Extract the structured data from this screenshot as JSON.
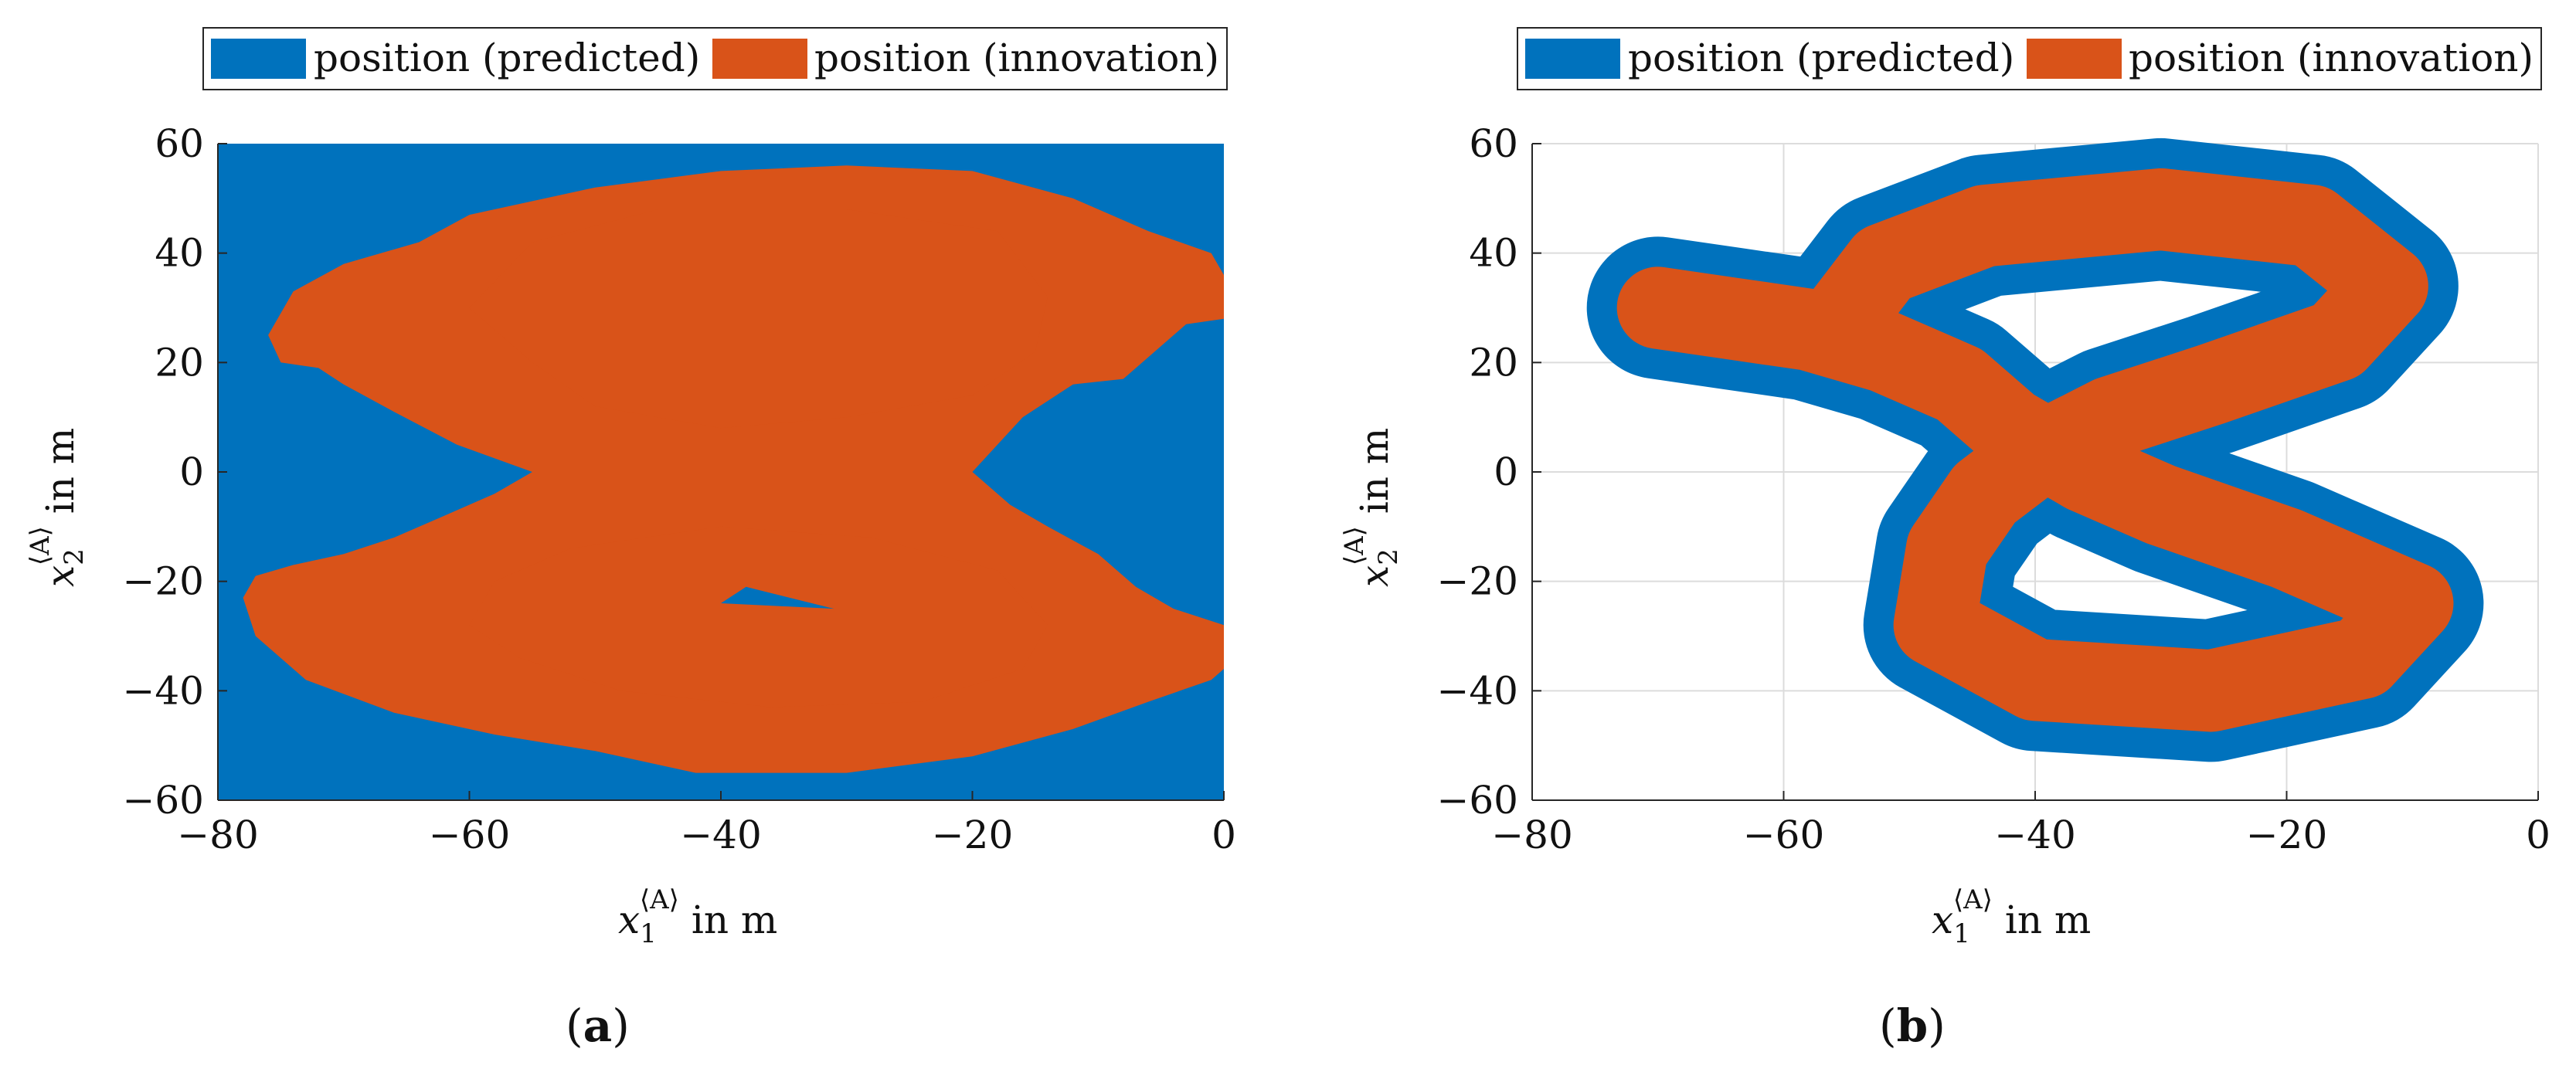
{
  "colors": {
    "predicted": "#0072BD",
    "innovation": "#D95319",
    "grid": "#dcdcdc",
    "axis": "#262626"
  },
  "chart_data": [
    {
      "type": "area",
      "panel_label": "a",
      "legend": {
        "entries": [
          "position (predicted)",
          "position (innovation)"
        ],
        "placement": "top"
      },
      "xlabel": {
        "symbol": "x",
        "sub": "1",
        "sup": "⟨A⟩",
        "unit": " in m"
      },
      "ylabel": {
        "symbol": "x",
        "sub": "2",
        "sup": "⟨A⟩",
        "unit": " in m"
      },
      "xlim": [
        -80,
        0
      ],
      "ylim": [
        -60,
        60
      ],
      "xticks": [
        -80,
        -60,
        -40,
        -20,
        0
      ],
      "yticks": [
        -60,
        -40,
        -20,
        0,
        20,
        40,
        60
      ],
      "xtick_labels": [
        "−80",
        "−60",
        "−40",
        "−20",
        "0"
      ],
      "ytick_labels": [
        "−60",
        "−40",
        "−20",
        "0",
        "20",
        "40",
        "60"
      ],
      "grid": false,
      "series": [
        {
          "name": "position (predicted)",
          "color": "#0072BD",
          "polygons": [
            [
              [
                -80,
                -60
              ],
              [
                0,
                -60
              ],
              [
                0,
                60
              ],
              [
                -80,
                60
              ]
            ]
          ]
        },
        {
          "name": "position (innovation)",
          "color": "#D95319",
          "polygons": [
            [
              [
                -76,
                25
              ],
              [
                -74,
                33
              ],
              [
                -70,
                38
              ],
              [
                -64,
                42
              ],
              [
                -60,
                47
              ],
              [
                -50,
                52
              ],
              [
                -40,
                55
              ],
              [
                -30,
                56
              ],
              [
                -20,
                55
              ],
              [
                -12,
                50
              ],
              [
                -6,
                44
              ],
              [
                -1,
                40
              ],
              [
                0,
                36
              ],
              [
                0,
                28
              ],
              [
                -3,
                27
              ],
              [
                -8,
                17
              ],
              [
                -12,
                16
              ],
              [
                -16,
                10
              ],
              [
                -20,
                0
              ],
              [
                -40,
                0
              ],
              [
                -55,
                0
              ],
              [
                -61,
                5
              ],
              [
                -66,
                11
              ],
              [
                -70,
                16
              ],
              [
                -72,
                19
              ],
              [
                -75,
                20
              ]
            ],
            [
              [
                -78,
                -23
              ],
              [
                -77,
                -30
              ],
              [
                -73,
                -38
              ],
              [
                -66,
                -44
              ],
              [
                -58,
                -48
              ],
              [
                -50,
                -51
              ],
              [
                -42,
                -55
              ],
              [
                -30,
                -55
              ],
              [
                -20,
                -52
              ],
              [
                -12,
                -47
              ],
              [
                -6,
                -42
              ],
              [
                -1,
                -38
              ],
              [
                0,
                -36
              ],
              [
                0,
                -28
              ],
              [
                -4,
                -25
              ],
              [
                -7,
                -21
              ],
              [
                -10,
                -15
              ],
              [
                -14,
                -10
              ],
              [
                -17,
                -6
              ],
              [
                -20,
                0
              ],
              [
                -40,
                0
              ],
              [
                -55,
                0
              ],
              [
                -58,
                -4
              ],
              [
                -62,
                -8
              ],
              [
                -66,
                -12
              ],
              [
                -70,
                -15
              ],
              [
                -74,
                -17
              ],
              [
                -77,
                -19
              ]
            ],
            [
              [
                -60,
                30
              ],
              [
                -58,
                26
              ],
              [
                -55,
                20
              ],
              [
                -50,
                12
              ],
              [
                -40,
                8
              ],
              [
                -30,
                10
              ],
              [
                -20,
                14
              ],
              [
                -15,
                22
              ],
              [
                -14,
                32
              ],
              [
                -18,
                44
              ],
              [
                -30,
                48
              ],
              [
                -45,
                48
              ],
              [
                -55,
                42
              ]
            ],
            [
              [
                -60,
                -28
              ],
              [
                -56,
                -34
              ],
              [
                -48,
                -40
              ],
              [
                -36,
                -43
              ],
              [
                -24,
                -42
              ],
              [
                -16,
                -36
              ],
              [
                -14,
                -28
              ],
              [
                -18,
                -18
              ],
              [
                -28,
                -12
              ],
              [
                -40,
                -10
              ],
              [
                -52,
                -14
              ],
              [
                -58,
                -20
              ]
            ]
          ]
        }
      ],
      "holes": [
        [
          [
            -40,
            -24
          ],
          [
            -31,
            -25
          ],
          [
            -38,
            -21
          ]
        ]
      ]
    },
    {
      "type": "area",
      "panel_label": "b",
      "legend": {
        "entries": [
          "position (predicted)",
          "position (innovation)"
        ],
        "placement": "top"
      },
      "xlabel": {
        "symbol": "x",
        "sub": "1",
        "sup": "⟨A⟩",
        "unit": " in m"
      },
      "ylabel": {
        "symbol": "x",
        "sub": "2",
        "sup": "⟨A⟩",
        "unit": " in m"
      },
      "xlim": [
        -80,
        0
      ],
      "ylim": [
        -60,
        60
      ],
      "xticks": [
        -80,
        -60,
        -40,
        -20,
        0
      ],
      "yticks": [
        -60,
        -40,
        -20,
        0,
        20,
        40,
        60
      ],
      "xtick_labels": [
        "−80",
        "−60",
        "−40",
        "−20",
        "0"
      ],
      "ytick_labels": [
        "−60",
        "−40",
        "−20",
        "0",
        "20",
        "40",
        "60"
      ],
      "grid": true,
      "series": [
        {
          "name": "position (predicted)",
          "color": "#0072BD",
          "path": [
            [
              -56,
              26
            ],
            [
              -52,
              38
            ],
            [
              -44,
              45
            ],
            [
              -30,
              48
            ],
            [
              -18,
              45
            ],
            [
              -12,
              34
            ],
            [
              -16,
              24
            ],
            [
              -26,
              16
            ],
            [
              -34,
              10
            ],
            [
              -40,
              3
            ],
            [
              -44,
              -4
            ],
            [
              -47,
              -14
            ],
            [
              -48,
              -28
            ],
            [
              -40,
              -38
            ],
            [
              -26,
              -40
            ],
            [
              -14,
              -34
            ],
            [
              -10,
              -24
            ],
            [
              -20,
              -14
            ],
            [
              -30,
              -6
            ],
            [
              -36,
              0
            ],
            [
              -42,
              8
            ],
            [
              -46,
              16
            ],
            [
              -52,
              22
            ],
            [
              -58,
              26
            ],
            [
              -64,
              28
            ],
            [
              -70,
              30
            ]
          ],
          "width": 26
        },
        {
          "name": "position (innovation)",
          "color": "#D95319",
          "path": [
            [
              -56,
              26
            ],
            [
              -52,
              38
            ],
            [
              -44,
              45
            ],
            [
              -30,
              48
            ],
            [
              -18,
              45
            ],
            [
              -12,
              34
            ],
            [
              -16,
              24
            ],
            [
              -26,
              16
            ],
            [
              -34,
              10
            ],
            [
              -40,
              3
            ],
            [
              -44,
              -4
            ],
            [
              -47,
              -14
            ],
            [
              -48,
              -28
            ],
            [
              -40,
              -38
            ],
            [
              -26,
              -40
            ],
            [
              -14,
              -34
            ],
            [
              -10,
              -24
            ],
            [
              -20,
              -14
            ],
            [
              -30,
              -6
            ],
            [
              -36,
              0
            ],
            [
              -42,
              8
            ],
            [
              -46,
              16
            ],
            [
              -52,
              22
            ],
            [
              -58,
              26
            ],
            [
              -64,
              28
            ],
            [
              -70,
              30
            ]
          ],
          "width": 15
        }
      ]
    }
  ]
}
